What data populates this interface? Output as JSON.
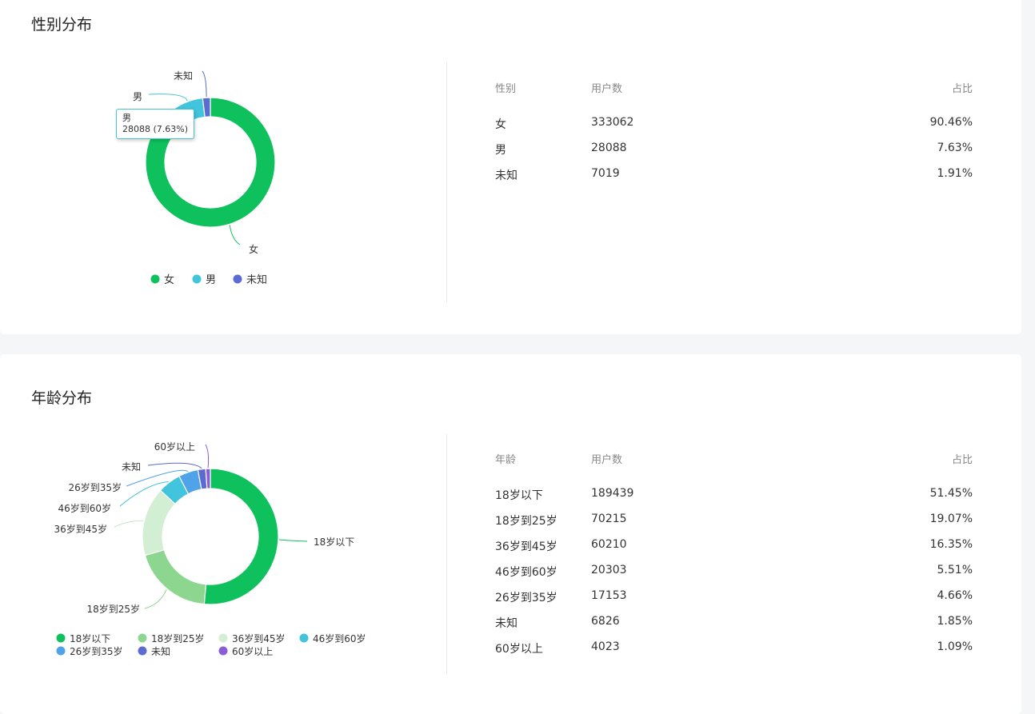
{
  "gender": {
    "title": "性别分布",
    "headers": [
      "性别",
      "用户数",
      "占比"
    ],
    "tooltip": {
      "label": "男",
      "value": "28088 (7.63%)"
    },
    "chart_data": {
      "type": "pie",
      "categories": [
        "女",
        "男",
        "未知"
      ],
      "values": [
        333062,
        28088,
        7019
      ],
      "percents": [
        "90.46%",
        "7.63%",
        "1.91%"
      ],
      "colors": [
        "#0ec15c",
        "#41c4dc",
        "#5c6bd1"
      ],
      "legend": "bottom"
    }
  },
  "age": {
    "title": "年龄分布",
    "headers": [
      "年龄",
      "用户数",
      "占比"
    ],
    "chart_data": {
      "type": "pie",
      "categories": [
        "18岁以下",
        "18岁到25岁",
        "36岁到45岁",
        "46岁到60岁",
        "26岁到35岁",
        "未知",
        "60岁以上"
      ],
      "values": [
        189439,
        70215,
        60210,
        20303,
        17153,
        6826,
        4023
      ],
      "percents": [
        "51.45%",
        "19.07%",
        "16.35%",
        "5.51%",
        "4.66%",
        "1.85%",
        "1.09%"
      ],
      "colors": [
        "#0ec15c",
        "#8dd68f",
        "#d2eed3",
        "#41c4dc",
        "#4fa3e8",
        "#5c6bd1",
        "#8a5cd6"
      ],
      "legend": "bottom"
    }
  }
}
